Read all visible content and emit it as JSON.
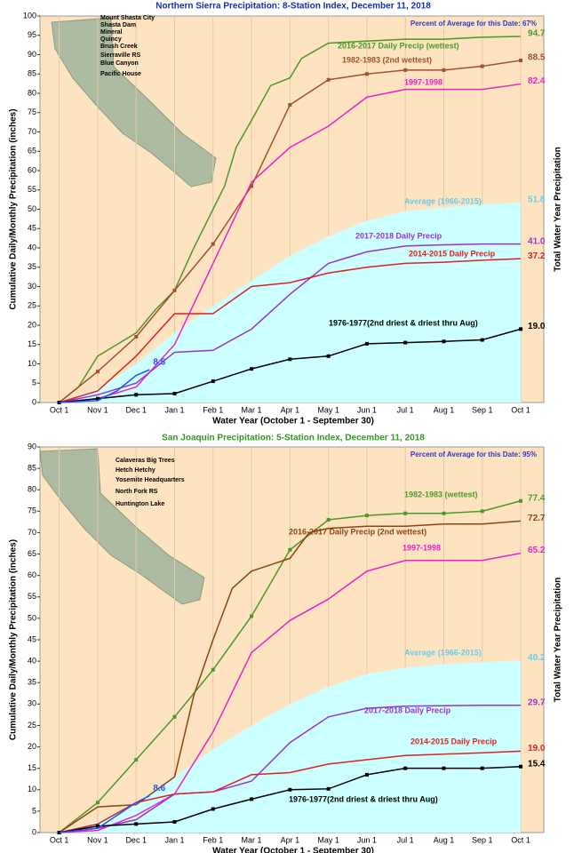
{
  "chart_data": [
    {
      "type": "line",
      "title": "Northern Sierra Precipitation: 8-Station Index, December 11, 2018",
      "xlabel": "Water Year (October 1 - September 30)",
      "ylabel": "Cumulative Daily/Monthly Precipitation (inches)",
      "y2label": "Total Water Year Precipitation",
      "note": "Percent of Average for this Date: 67%",
      "stations": [
        "Mount Shasta City",
        "Shasta Dam",
        "Mineral",
        "Quincy",
        "Brush Creek",
        "Sierraville RS",
        "Blue Canyon",
        "Pacific House"
      ],
      "xlim": [
        -0.5,
        12.6
      ],
      "xticks": [
        {
          "value": 0,
          "label": "Oct 1"
        },
        {
          "value": 1,
          "label": "Nov 1"
        },
        {
          "value": 2,
          "label": "Dec 1"
        },
        {
          "value": 3,
          "label": "Jan 1"
        },
        {
          "value": 4,
          "label": "Feb 1"
        },
        {
          "value": 5,
          "label": "Mar 1"
        },
        {
          "value": 6,
          "label": "Apr 1"
        },
        {
          "value": 7,
          "label": "May 1"
        },
        {
          "value": 8,
          "label": "Jun 1"
        },
        {
          "value": 9,
          "label": "Jul 1"
        },
        {
          "value": 10,
          "label": "Aug 1"
        },
        {
          "value": 11,
          "label": "Sep 1"
        },
        {
          "value": 12,
          "label": "Oct 1"
        }
      ],
      "ylim": [
        0,
        100
      ],
      "yticks": [
        0,
        5,
        10,
        15,
        20,
        25,
        30,
        35,
        40,
        45,
        50,
        55,
        60,
        65,
        70,
        75,
        80,
        85,
        90,
        95,
        100
      ],
      "grid": true,
      "series": [
        {
          "name": "Average (1966-2015)",
          "color": "#66ccee",
          "area": "#ccffff",
          "x": [
            0,
            1,
            2,
            3,
            4,
            5,
            6,
            7,
            8,
            9,
            10,
            11,
            12
          ],
          "values": [
            0,
            3.5,
            10,
            18,
            25,
            31.5,
            38,
            43,
            47,
            49.5,
            50.5,
            51.2,
            51.8
          ],
          "value_labels": [
            null,
            null,
            null,
            null,
            null,
            null,
            null,
            null,
            null,
            null,
            null,
            null,
            "51.8"
          ]
        },
        {
          "name": "2016-2017 Daily Precip (wettest)",
          "color": "#4a9a2a",
          "x": [
            0,
            0.5,
            1,
            1.5,
            2,
            2.5,
            3,
            3.5,
            4,
            4.3,
            4.6,
            5,
            5.5,
            6,
            6.3,
            7,
            8,
            9,
            10,
            11,
            12
          ],
          "values": [
            0,
            4,
            12,
            15,
            18,
            24,
            29,
            40,
            50,
            56,
            66,
            73,
            82,
            84,
            89,
            93,
            93.5,
            94,
            94,
            94.5,
            94.7
          ],
          "value_labels": [
            null,
            null,
            null,
            null,
            null,
            null,
            null,
            null,
            null,
            null,
            null,
            null,
            null,
            null,
            null,
            null,
            null,
            null,
            null,
            null,
            "94.7"
          ]
        },
        {
          "name": "1982-1983 (2nd wettest)",
          "color": "#a0522d",
          "markers": true,
          "x": [
            0,
            1,
            2,
            3,
            4,
            5,
            6,
            7,
            8,
            9,
            10,
            11,
            12
          ],
          "values": [
            0,
            8,
            17,
            29,
            41,
            56,
            77,
            83.5,
            85,
            86,
            86,
            87,
            88.5
          ],
          "value_labels": [
            null,
            null,
            null,
            null,
            null,
            null,
            null,
            null,
            null,
            null,
            null,
            null,
            "88.5"
          ]
        },
        {
          "name": "1997-1998",
          "color": "#ee22cc",
          "x": [
            0,
            1,
            2,
            3,
            4,
            5,
            6,
            7,
            8,
            9,
            10,
            11,
            12
          ],
          "values": [
            0,
            1,
            4,
            15,
            36,
            57,
            66,
            71.5,
            79,
            81,
            81,
            81,
            82.4
          ],
          "value_labels": [
            null,
            null,
            null,
            null,
            null,
            null,
            null,
            null,
            null,
            null,
            null,
            null,
            "82.4"
          ]
        },
        {
          "name": "2017-2018 Daily Precip",
          "color": "#9933cc",
          "x": [
            0,
            1,
            2,
            3,
            4,
            5,
            6,
            7,
            8,
            9,
            10,
            11,
            12
          ],
          "values": [
            0,
            2,
            5,
            13,
            13.5,
            19,
            28,
            36,
            39,
            40.5,
            40.8,
            41,
            41
          ],
          "value_labels": [
            null,
            null,
            null,
            null,
            null,
            null,
            null,
            null,
            null,
            null,
            null,
            null,
            "41.0"
          ]
        },
        {
          "name": "2014-2015 Daily Precip",
          "color": "#dd2222",
          "x": [
            0,
            1,
            2,
            3,
            4,
            5,
            6,
            7,
            8,
            9,
            10,
            11,
            12
          ],
          "values": [
            0,
            3,
            12,
            23,
            23,
            30,
            31,
            33.5,
            35,
            36,
            36.3,
            36.8,
            37.2
          ],
          "value_labels": [
            null,
            null,
            null,
            null,
            null,
            null,
            null,
            null,
            null,
            null,
            null,
            null,
            "37.2"
          ]
        },
        {
          "name": "1976-1977(2nd driest & driest thru Aug)",
          "color": "#000000",
          "markers": true,
          "x": [
            0,
            1,
            2,
            3,
            4,
            5,
            6,
            7,
            8,
            9,
            10,
            11,
            12
          ],
          "values": [
            0,
            1,
            2,
            2.3,
            5.5,
            8.7,
            11.2,
            12,
            15.2,
            15.5,
            15.8,
            16.2,
            19.0
          ],
          "value_labels": [
            null,
            null,
            null,
            null,
            null,
            null,
            null,
            null,
            null,
            null,
            null,
            null,
            "19.0"
          ]
        },
        {
          "color": "#2255ee",
          "x": [
            0,
            1,
            1.5,
            2,
            2.35
          ],
          "values": [
            0,
            0.5,
            3,
            7,
            8.5
          ],
          "value_labels": [
            null,
            null,
            null,
            null,
            "8.5"
          ]
        }
      ]
    },
    {
      "type": "line",
      "title": "San Joaquin Precipitation: 5-Station Index, December 11, 2018",
      "xlabel": "Water Year (October 1 - September 30)",
      "ylabel": "Cumulative Daily/Monthly Precipitation (inches)",
      "y2label": "Total Water Year Precipitation",
      "note": "Percent of Average for this Date: 95%",
      "stations": [
        "Calaveras Big Trees",
        "Hetch Hetchy",
        "Yosemite Headquarters",
        "North Fork RS",
        "Huntington Lake"
      ],
      "xlim": [
        -0.5,
        12.6
      ],
      "xticks": [
        {
          "value": 0,
          "label": "Oct 1"
        },
        {
          "value": 1,
          "label": "Nov 1"
        },
        {
          "value": 2,
          "label": "Dec 1"
        },
        {
          "value": 3,
          "label": "Jan 1"
        },
        {
          "value": 4,
          "label": "Feb 1"
        },
        {
          "value": 5,
          "label": "Mar 1"
        },
        {
          "value": 6,
          "label": "Apr 1"
        },
        {
          "value": 7,
          "label": "May 1"
        },
        {
          "value": 8,
          "label": "Jun 1"
        },
        {
          "value": 9,
          "label": "Jul 1"
        },
        {
          "value": 10,
          "label": "Aug 1"
        },
        {
          "value": 11,
          "label": "Sep 1"
        },
        {
          "value": 12,
          "label": "Oct 1"
        }
      ],
      "ylim": [
        0,
        90
      ],
      "yticks": [
        0,
        5,
        10,
        15,
        20,
        25,
        30,
        35,
        40,
        45,
        50,
        55,
        60,
        65,
        70,
        75,
        80,
        85,
        90
      ],
      "grid": true,
      "series": [
        {
          "name": "Average (1966-2015)",
          "color": "#66ccee",
          "area": "#ccffff",
          "x": [
            0,
            1,
            2,
            3,
            4,
            5,
            6,
            7,
            8,
            9,
            10,
            11,
            12
          ],
          "values": [
            0,
            2.5,
            7,
            13,
            19.5,
            25,
            30,
            34,
            37,
            38.5,
            39.3,
            39.8,
            40.2
          ],
          "value_labels": [
            null,
            null,
            null,
            null,
            null,
            null,
            null,
            null,
            null,
            null,
            null,
            null,
            "40.2"
          ]
        },
        {
          "name": "1982-1983 (wettest)",
          "color": "#4a9a2a",
          "markers": true,
          "x": [
            0,
            1,
            2,
            3,
            4,
            5,
            6,
            7,
            8,
            9,
            10,
            11,
            12
          ],
          "values": [
            0,
            7,
            17,
            27,
            38,
            50.5,
            66,
            73,
            74,
            74.5,
            74.5,
            75,
            77.4
          ],
          "value_labels": [
            null,
            null,
            null,
            null,
            null,
            null,
            null,
            null,
            null,
            null,
            null,
            null,
            "77.4"
          ]
        },
        {
          "name": "2016-2017 Daily Precip (2nd wettest)",
          "color": "#8b4513",
          "x": [
            0,
            1,
            2,
            3,
            3.5,
            4,
            4.5,
            5,
            6,
            6.5,
            7,
            8,
            9,
            10,
            11,
            12
          ],
          "values": [
            0,
            6,
            6.5,
            13,
            32,
            45,
            57,
            61,
            64,
            70,
            71,
            71.5,
            71.5,
            72,
            72,
            72.7
          ],
          "value_labels": [
            null,
            null,
            null,
            null,
            null,
            null,
            null,
            null,
            null,
            null,
            null,
            null,
            null,
            null,
            null,
            "72.7"
          ]
        },
        {
          "name": "1997-1998",
          "color": "#ee22cc",
          "x": [
            0,
            1,
            2,
            3,
            4,
            5,
            6,
            7,
            8,
            9,
            10,
            11,
            12
          ],
          "values": [
            0,
            0.5,
            4,
            9,
            23.5,
            42,
            49.5,
            54.5,
            61,
            63.5,
            63.5,
            63.5,
            65.2
          ],
          "value_labels": [
            null,
            null,
            null,
            null,
            null,
            null,
            null,
            null,
            null,
            null,
            null,
            null,
            "65.2"
          ]
        },
        {
          "name": "2017-2018 Daily Precip",
          "color": "#9933cc",
          "x": [
            0,
            1,
            2,
            3,
            4,
            5,
            6,
            7,
            8,
            9,
            10,
            11,
            12
          ],
          "values": [
            0,
            1,
            3,
            9,
            9.5,
            12,
            21,
            27,
            29,
            29.5,
            29.6,
            29.7,
            29.7
          ],
          "value_labels": [
            null,
            null,
            null,
            null,
            null,
            null,
            null,
            null,
            null,
            null,
            null,
            null,
            "29.7"
          ]
        },
        {
          "name": "2014-2015 Daily Precip",
          "color": "#dd2222",
          "x": [
            0,
            1,
            2,
            3,
            4,
            5,
            6,
            7,
            8,
            9,
            10,
            11,
            12
          ],
          "values": [
            0,
            2,
            7,
            9,
            9.5,
            13.5,
            14,
            16,
            17,
            18,
            18.3,
            18.6,
            19.0
          ],
          "value_labels": [
            null,
            null,
            null,
            null,
            null,
            null,
            null,
            null,
            null,
            null,
            null,
            null,
            "19.0"
          ]
        },
        {
          "name": "1976-1977(2nd driest & driest thru Aug)",
          "color": "#000000",
          "markers": true,
          "x": [
            0,
            1,
            2,
            3,
            4,
            5,
            6,
            7,
            8,
            9,
            10,
            11,
            12
          ],
          "values": [
            0,
            1.5,
            2,
            2.5,
            5.5,
            7.8,
            10,
            10.2,
            13.5,
            15,
            15,
            15,
            15.4
          ],
          "value_labels": [
            null,
            null,
            null,
            null,
            null,
            null,
            null,
            null,
            null,
            null,
            null,
            null,
            "15.4"
          ]
        },
        {
          "color": "#2255ee",
          "x": [
            0,
            1,
            1.5,
            2,
            2.35
          ],
          "values": [
            0,
            1,
            4,
            7,
            8.6
          ],
          "value_labels": [
            null,
            null,
            null,
            null,
            "8.6"
          ]
        }
      ]
    }
  ]
}
